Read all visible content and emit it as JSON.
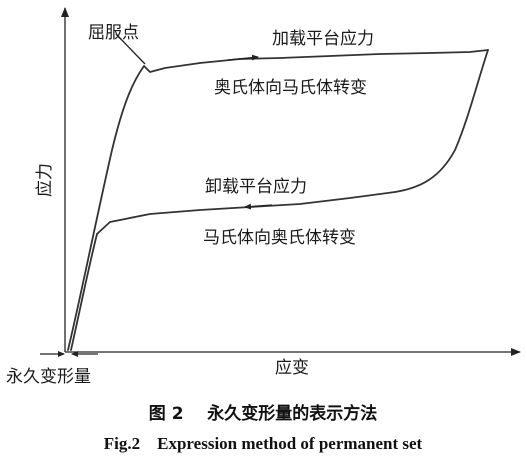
{
  "figure": {
    "y_axis_label": "应力",
    "x_axis_label": "应变",
    "yield_point_label": "屈服点",
    "loading_plateau_label": "加载平台应力",
    "loading_transformation_label": "奥氏体向马氏体转变",
    "unloading_plateau_label": "卸载平台应力",
    "unloading_transformation_label": "马氏体向奥氏体转变",
    "permanent_set_label": "永久变形量"
  },
  "caption": {
    "cn": "图 2    永久变形量的表示方法",
    "en": "Fig.2    Expression method of permanent set"
  }
}
